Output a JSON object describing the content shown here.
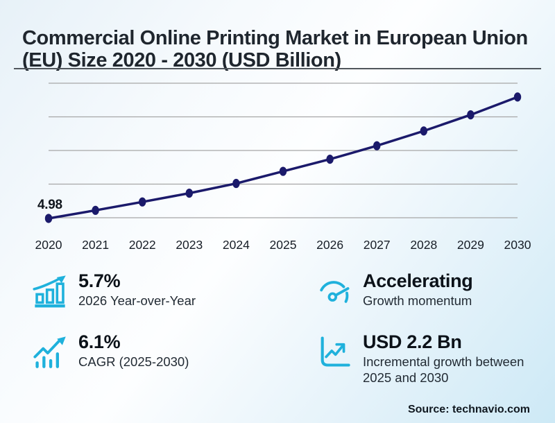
{
  "title": "Commercial Online Printing Market in European Union (EU) Size 2020 - 2030 (USD Billion)",
  "source": "Source: technavio.com",
  "colors": {
    "accent": "#1fb1dc",
    "line": "#1b1a6b",
    "background_top_left": "#e7f1f8",
    "background_bottom_right": "#cde9f6",
    "gridline": "#a6a6a6"
  },
  "chart_data": {
    "type": "line",
    "title": "Commercial Online Printing Market in European Union (EU) Size 2020 - 2030 (USD Billion)",
    "xlabel": "",
    "ylabel": "",
    "unit": "USD Billion",
    "categories": [
      "2020",
      "2021",
      "2022",
      "2023",
      "2024",
      "2025",
      "2026",
      "2027",
      "2028",
      "2029",
      "2030"
    ],
    "values": [
      4.98,
      5.22,
      5.47,
      5.73,
      6.02,
      6.38,
      6.74,
      7.14,
      7.58,
      8.06,
      8.59
    ],
    "first_point_label": "4.98",
    "ylim": [
      4.6,
      9.4
    ],
    "gridlines": [
      5,
      6,
      7,
      8,
      9
    ],
    "grid": true,
    "legend": false,
    "y_tick_labels_visible": false,
    "line_color": "#1b1a6b",
    "marker": "ellipse"
  },
  "stats": [
    {
      "icon": "bar-chart-growth-icon",
      "value": "5.7%",
      "label": "2026 Year-over-Year"
    },
    {
      "icon": "gauge-icon",
      "value": "Accelerating",
      "label": "Growth momentum"
    },
    {
      "icon": "trend-bars-icon",
      "value": "6.1%",
      "label": "CAGR (2025-2030)"
    },
    {
      "icon": "chart-box-icon",
      "value": "USD 2.2 Bn",
      "label": "Incremental growth between 2025 and 2030"
    }
  ]
}
